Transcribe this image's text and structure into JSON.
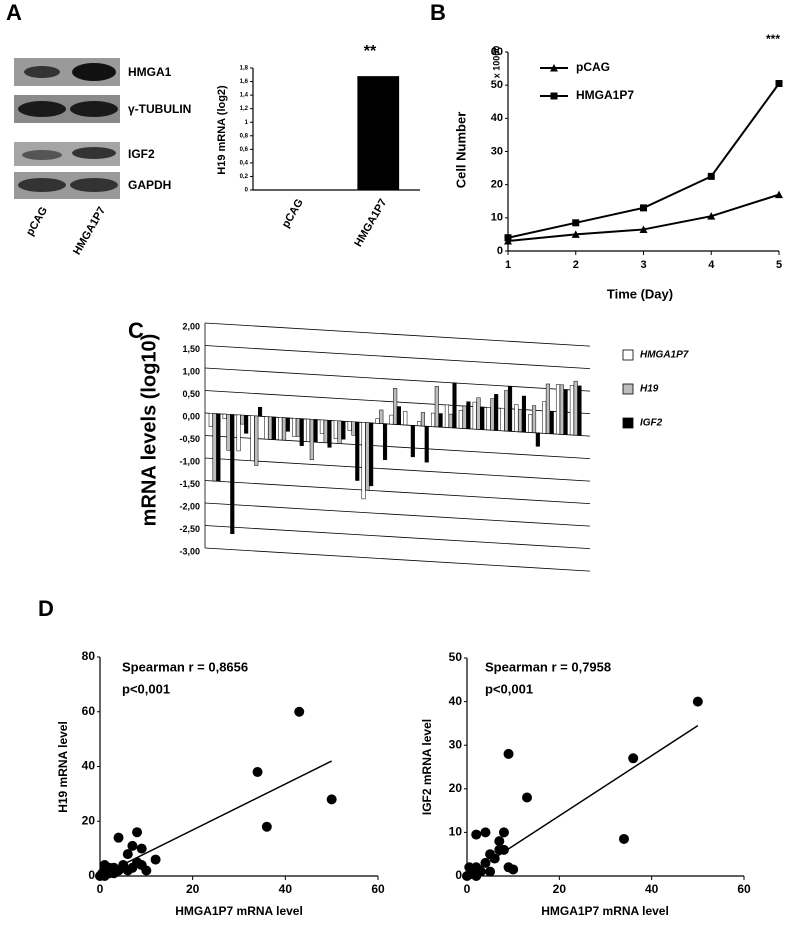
{
  "panel_labels": [
    "A",
    "B",
    "C",
    "D"
  ],
  "blot": {
    "proteins": [
      "HMGA1",
      "γ-TUBULIN",
      "IGF2",
      "GAPDH"
    ],
    "lanes": [
      "pCAG",
      "HMGA1P7"
    ]
  },
  "chart_data": [
    {
      "type": "bar",
      "ylabel": "H19 mRNA (log2)",
      "annotations": [
        "**"
      ],
      "categories": [
        "pCAG",
        "HMGA1P7"
      ],
      "values": [
        0,
        1.68
      ],
      "color": "#000000",
      "ylim": [
        0,
        1.8
      ],
      "yticks": [
        0,
        {
          "value": 0.2,
          "label": "0,2"
        },
        {
          "value": 0.4,
          "label": "0,4"
        },
        {
          "value": 0.6,
          "label": "0,6"
        },
        {
          "value": 0.8,
          "label": "0,8"
        },
        1,
        {
          "value": 1.2,
          "label": "1,2"
        },
        {
          "value": 1.4,
          "label": "1,4"
        },
        {
          "value": 1.6,
          "label": "1,6"
        },
        {
          "value": 1.8,
          "label": "1,8"
        }
      ]
    },
    {
      "type": "line",
      "ylabel": "Cell Number",
      "y_unit": "x 10000",
      "xlabel": "Time (Day)",
      "annotations": [
        "***"
      ],
      "x": [
        1,
        2,
        3,
        4,
        5
      ],
      "xlim": [
        1,
        5
      ],
      "xticks": [
        1,
        2,
        3,
        4,
        5
      ],
      "ylim": [
        0,
        60
      ],
      "yticks": [
        0,
        10,
        20,
        30,
        40,
        50,
        60
      ],
      "series": [
        {
          "name": "pCAG",
          "color": "#000000",
          "marker": "triangle",
          "values": [
            3,
            5,
            6.5,
            10.5,
            17
          ]
        },
        {
          "name": "HMGA1P7",
          "color": "#000000",
          "marker": "square",
          "values": [
            4,
            8.5,
            13,
            22.5,
            50.5
          ]
        }
      ]
    },
    {
      "type": "bar",
      "ylabel": "mRNA levels (log10)",
      "categories": [
        null,
        null,
        null,
        null,
        null,
        null,
        null,
        null,
        null,
        null,
        null,
        null,
        null,
        null,
        null,
        null,
        null,
        null,
        null,
        null,
        null,
        null,
        null,
        null,
        null,
        null,
        null
      ],
      "ylim": [
        -3,
        2
      ],
      "yticks": [
        {
          "value": -3,
          "label": "-3,00"
        },
        {
          "value": -2.5,
          "label": "-2,50"
        },
        {
          "value": -2,
          "label": "-2,00"
        },
        {
          "value": -1.5,
          "label": "-1,50"
        },
        {
          "value": -1,
          "label": "-1,00"
        },
        {
          "value": -0.5,
          "label": "-0,50"
        },
        {
          "value": 0,
          "label": "0,00"
        },
        {
          "value": 0.5,
          "label": "0,50"
        },
        {
          "value": 1,
          "label": "1,00"
        },
        {
          "value": 1.5,
          "label": "1,50"
        },
        {
          "value": 2,
          "label": "2,00"
        }
      ],
      "series": [
        {
          "name": "HMGA1P7",
          "color": "#ffffff",
          "values": [
            -0.3,
            -0.1,
            -0.8,
            -1.0,
            -0.5,
            -0.5,
            -0.4,
            -0.5,
            -0.3,
            -0.4,
            -0.2,
            -1.7,
            0.1,
            0.2,
            0.3,
            0.1,
            0.3,
            0.5,
            0.4,
            0.6,
            0.5,
            0.5,
            0.6,
            0.4,
            0.7,
            1.1,
            1.1
          ]
        },
        {
          "name": "H19",
          "color": "#bdbdbd",
          "values": [
            -1.5,
            -0.8,
            -0.2,
            -1.1,
            -0.5,
            -0.5,
            -0.4,
            -0.9,
            -0.5,
            -0.5,
            -0.3,
            -1.5,
            0.3,
            0.8,
            0.0,
            0.3,
            0.9,
            0.3,
            0.5,
            0.7,
            0.7,
            0.9,
            0.5,
            0.6,
            1.1,
            1.1,
            1.2
          ]
        },
        {
          "name": "IGF2",
          "color": "#000000",
          "values": [
            -1.5,
            -2.65,
            -0.4,
            0.2,
            -0.5,
            -0.3,
            -0.6,
            -0.5,
            -0.6,
            -0.4,
            -1.3,
            -1.4,
            -0.8,
            0.4,
            -0.7,
            -0.8,
            0.3,
            1.0,
            0.6,
            0.5,
            0.8,
            1.0,
            0.8,
            -0.3,
            0.5,
            1.0,
            1.1
          ]
        }
      ]
    },
    {
      "type": "scatter",
      "ylabel": "H19 mRNA level",
      "xlabel": "HMGA1P7 mRNA level",
      "annotations": [
        "Spearman r = 0,8656",
        "p<0,001"
      ],
      "color": "#000000",
      "xlim": [
        0,
        60
      ],
      "xticks": [
        0,
        20,
        40,
        60
      ],
      "ylim": [
        0,
        80
      ],
      "yticks": [
        0,
        20,
        40,
        60,
        80
      ],
      "x": [
        0,
        0.5,
        1,
        1,
        2,
        2,
        3,
        4,
        4,
        5,
        6,
        7,
        7,
        8,
        8,
        9,
        9,
        10,
        12,
        34,
        36,
        43,
        50,
        1,
        3,
        6
      ],
      "values": [
        0,
        1,
        2,
        4,
        1,
        3,
        1,
        14,
        2,
        4,
        8,
        11,
        3,
        16,
        5,
        10,
        4,
        2,
        6,
        38,
        18,
        60,
        28,
        0,
        3,
        2
      ],
      "fit": {
        "x": [
          0,
          50
        ],
        "y": [
          0,
          42
        ]
      }
    },
    {
      "type": "scatter",
      "ylabel": "IGF2 mRNA level",
      "xlabel": "HMGA1P7 mRNA level",
      "annotations": [
        "Spearman r = 0,7958",
        "p<0,001"
      ],
      "color": "#000000",
      "xlim": [
        0,
        60
      ],
      "xticks": [
        0,
        20,
        40,
        60
      ],
      "ylim": [
        0,
        50
      ],
      "yticks": [
        0,
        10,
        20,
        30,
        40,
        50
      ],
      "x": [
        0,
        0.5,
        1,
        2,
        2,
        3,
        4,
        4,
        5,
        6,
        7,
        7,
        8,
        8,
        9,
        9,
        10,
        13,
        34,
        36,
        50,
        1,
        2,
        5
      ],
      "values": [
        0,
        2,
        1,
        9.5,
        0,
        1,
        10,
        3,
        1,
        4,
        6,
        8,
        6,
        10,
        28,
        2,
        1.5,
        18,
        8.5,
        27,
        40,
        0.5,
        2,
        5
      ],
      "fit": {
        "x": [
          0,
          50
        ],
        "y": [
          0,
          34.5
        ]
      }
    }
  ]
}
